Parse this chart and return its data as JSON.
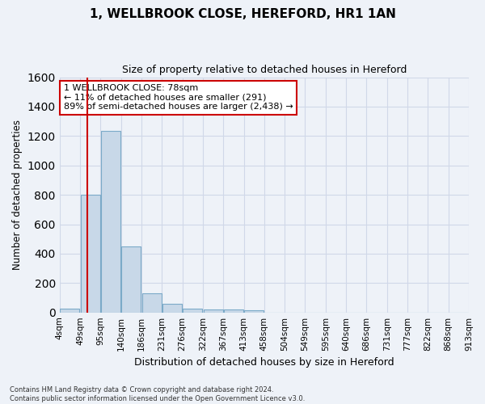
{
  "title1": "1, WELLBROOK CLOSE, HEREFORD, HR1 1AN",
  "title2": "Size of property relative to detached houses in Hereford",
  "xlabel": "Distribution of detached houses by size in Hereford",
  "ylabel": "Number of detached properties",
  "footnote1": "Contains HM Land Registry data © Crown copyright and database right 2024.",
  "footnote2": "Contains public sector information licensed under the Open Government Licence v3.0.",
  "annotation_line1": "1 WELLBROOK CLOSE: 78sqm",
  "annotation_line2": "← 11% of detached houses are smaller (291)",
  "annotation_line3": "89% of semi-detached houses are larger (2,438) →",
  "bin_labels": [
    "4sqm",
    "49sqm",
    "95sqm",
    "140sqm",
    "186sqm",
    "231sqm",
    "276sqm",
    "322sqm",
    "367sqm",
    "413sqm",
    "458sqm",
    "504sqm",
    "549sqm",
    "595sqm",
    "640sqm",
    "686sqm",
    "731sqm",
    "777sqm",
    "822sqm",
    "868sqm",
    "913sqm"
  ],
  "bar_heights": [
    25,
    800,
    1235,
    450,
    130,
    60,
    25,
    20,
    20,
    15,
    0,
    0,
    0,
    0,
    0,
    0,
    0,
    0,
    0,
    0
  ],
  "bar_color": "#c8d8e8",
  "bar_edge_color": "#7baac8",
  "vline_color": "#cc0000",
  "vline_bin": 1,
  "annotation_box_color": "#cc0000",
  "ylim": [
    0,
    1600
  ],
  "background_color": "#eef2f8",
  "grid_color": "#d0d8e8",
  "yticks": [
    0,
    200,
    400,
    600,
    800,
    1000,
    1200,
    1400,
    1600
  ],
  "n_bins": 20
}
